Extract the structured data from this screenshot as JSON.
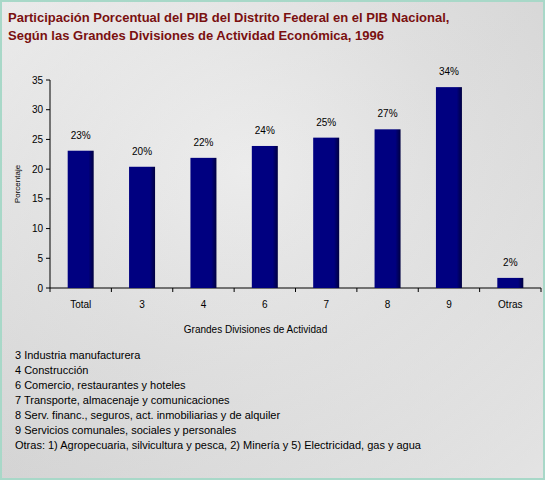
{
  "chart_data": {
    "type": "bar",
    "title": "Participación Porcentual del PIB del Distrito Federal en el PIB Nacional,",
    "subtitle": "Según las Grandes Divisiones de Actividad Económica, 1996",
    "x_label": "Grandes Divisiones de Actividad",
    "y_label": "Porcentaje",
    "categories": [
      "Total",
      "3",
      "4",
      "6",
      "7",
      "8",
      "9",
      "Otras"
    ],
    "values": [
      23.1,
      20.4,
      21.9,
      23.9,
      25.3,
      26.7,
      33.8,
      1.7
    ],
    "value_labels": [
      "23%",
      "20%",
      "22%",
      "24%",
      "25%",
      "27%",
      "34%",
      "2%"
    ],
    "color": "#000080",
    "ylim": [
      0,
      35
    ],
    "yticks": [
      0,
      5,
      10,
      15,
      20,
      25,
      30,
      35
    ],
    "grid": false,
    "data_labels": true,
    "annotations": [
      "3 Industria manufacturera",
      "4 Construcción",
      "6 Comercio, restaurantes y hoteles",
      "7 Transporte, almacenaje y comunicaciones",
      "8 Serv. financ., seguros, act. inmobiliarias y de alquiler",
      "9 Servicios comunales, sociales y personales",
      "Otras: 1) Agropecuaria, silvicultura y pesca, 2) Minería y 5) Electricidad, gas y agua"
    ]
  }
}
